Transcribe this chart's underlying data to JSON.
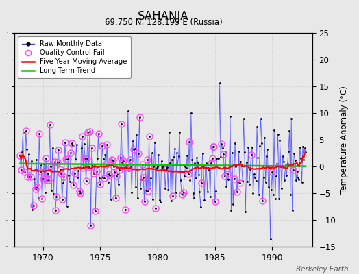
{
  "title": "SAHANJA",
  "subtitle": "69.750 N, 128.199 E (Russia)",
  "ylabel": "Temperature Anomaly (°C)",
  "attribution": "Berkeley Earth",
  "xlim": [
    1967.5,
    1993.5
  ],
  "ylim": [
    -15,
    25
  ],
  "yticks": [
    -15,
    -10,
    -5,
    0,
    5,
    10,
    15,
    20,
    25
  ],
  "xticks": [
    1970,
    1975,
    1980,
    1985,
    1990
  ],
  "raw_color": "#4444ff",
  "ma_color": "#ff0000",
  "trend_color": "#00cc00",
  "qc_color": "#ff44ff",
  "fig_bg": "#e8e8e8",
  "plot_bg": "#e8e8e8",
  "grid_color": "#cccccc"
}
